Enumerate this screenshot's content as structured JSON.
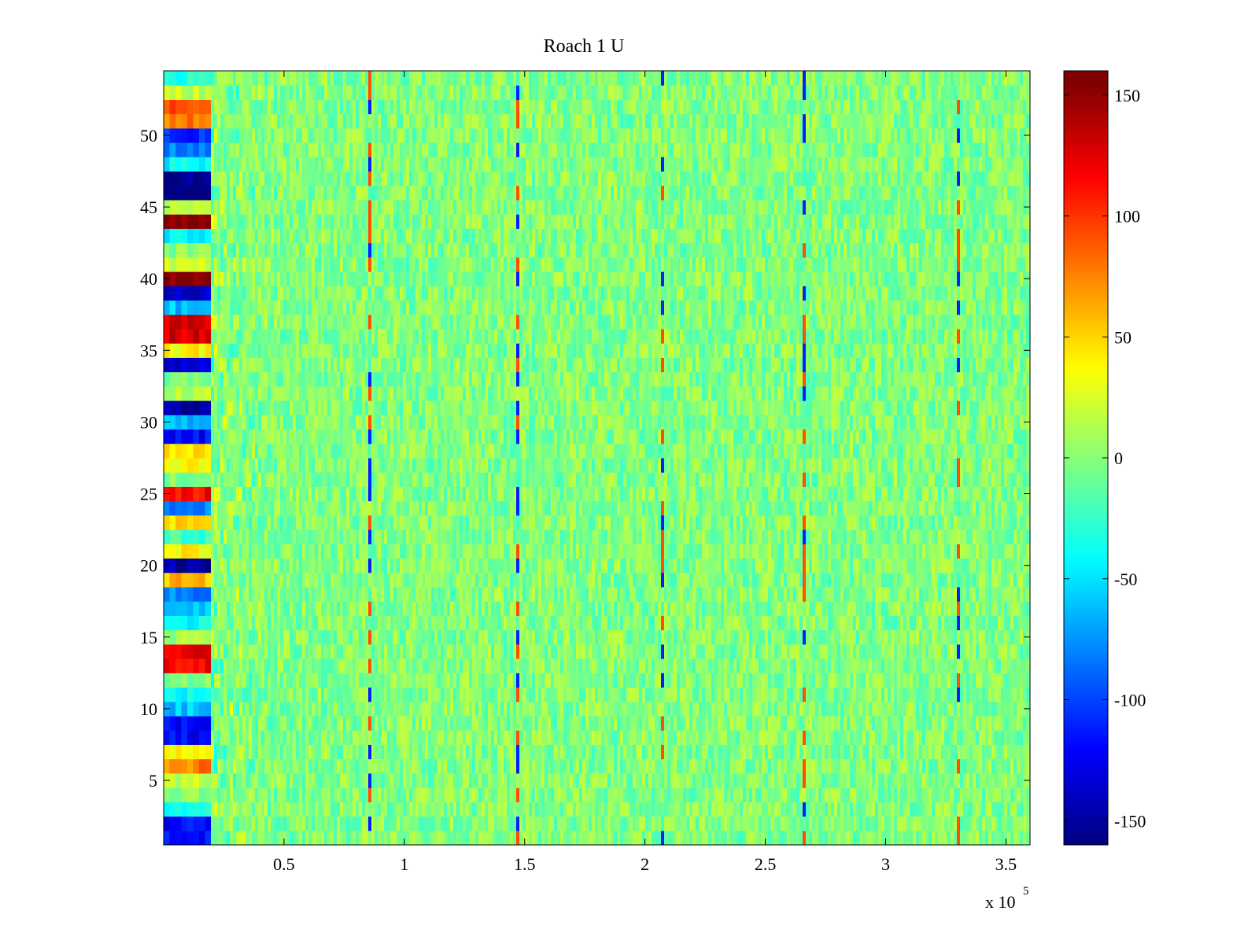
{
  "chart_data": {
    "type": "heatmap",
    "title": "Roach 1 U",
    "xlabel": "",
    "ylabel": "",
    "x_multiplier_label": {
      "base": "x 10",
      "exponent": "5"
    },
    "xlim": [
      0,
      3.6
    ],
    "ylim": [
      0.5,
      54.5
    ],
    "xticks": [
      0.5,
      1,
      1.5,
      2,
      2.5,
      3,
      3.5
    ],
    "xtick_labels": [
      "0.5",
      "1",
      "1.5",
      "2",
      "2.5",
      "3",
      "3.5"
    ],
    "yticks": [
      5,
      10,
      15,
      20,
      25,
      30,
      35,
      40,
      45,
      50
    ],
    "ytick_labels": [
      "5",
      "10",
      "15",
      "20",
      "25",
      "30",
      "35",
      "40",
      "45",
      "50"
    ],
    "rows": 54,
    "colormap": "jet",
    "clim": [
      -160,
      160
    ],
    "colorbar": {
      "ticks": [
        150,
        100,
        50,
        0,
        -50,
        -100,
        -150
      ],
      "tick_labels": [
        "150",
        "100",
        "50",
        "0",
        "-50",
        "-100",
        "-150"
      ]
    },
    "initial_row_values": [
      -120,
      -120,
      -40,
      0,
      20,
      80,
      40,
      -120,
      -120,
      -60,
      -40,
      0,
      120,
      120,
      10,
      -40,
      -60,
      -80,
      60,
      -150,
      40,
      -20,
      50,
      -80,
      120,
      0,
      40,
      50,
      -120,
      -60,
      -150,
      20,
      0,
      -130,
      40,
      130,
      130,
      -60,
      -140,
      160,
      20,
      0,
      -40,
      160,
      20,
      -160,
      -160,
      -40,
      -80,
      -110,
      80,
      100,
      20,
      -30
    ]
  }
}
